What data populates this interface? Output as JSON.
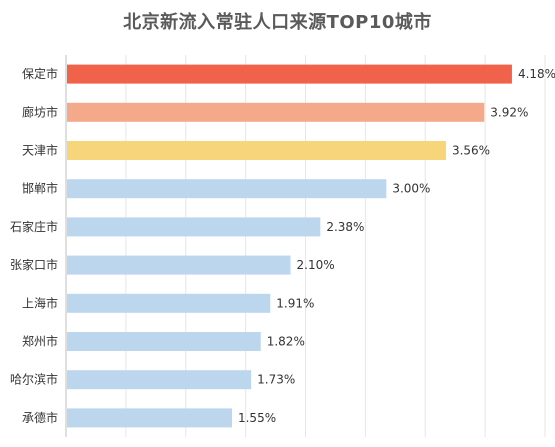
{
  "chart_data": {
    "type": "bar",
    "orientation": "horizontal",
    "title": "北京新流入常驻人口来源TOP10城市",
    "xlabel": "",
    "ylabel": "",
    "categories": [
      "保定市",
      "廊坊市",
      "天津市",
      "邯郸市",
      "石家庄市",
      "张家口市",
      "上海市",
      "郑州市",
      "哈尔滨市",
      "承德市"
    ],
    "values": [
      4.18,
      3.92,
      3.56,
      3.0,
      2.38,
      2.1,
      1.91,
      1.82,
      1.73,
      1.55
    ],
    "value_labels": [
      "4.18%",
      "3.92%",
      "3.56%",
      "3.00%",
      "2.38%",
      "2.10%",
      "1.91%",
      "1.82%",
      "1.73%",
      "1.55%"
    ],
    "bar_colors": [
      "#f0624a",
      "#f4a98a",
      "#f7d57a",
      "#bcd6ee",
      "#bcd6ee",
      "#bcd6ee",
      "#bcd6ee",
      "#bcd6ee",
      "#bcd6ee",
      "#bcd6ee"
    ],
    "xlim": [
      0,
      4.5
    ],
    "grid": true,
    "legend": "none"
  }
}
